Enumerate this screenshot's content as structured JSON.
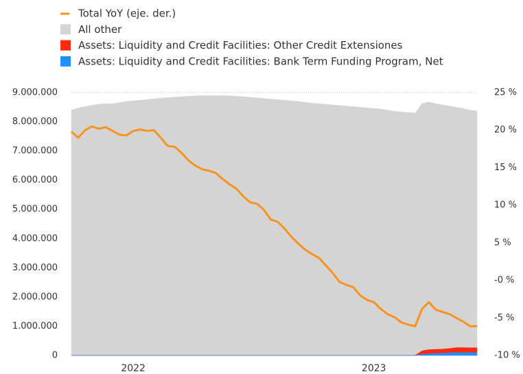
{
  "chart_data": {
    "type": "stacked-area-line",
    "categories": [
      null,
      null,
      null,
      null,
      null,
      null,
      null,
      null,
      null,
      "2022",
      null,
      null,
      null,
      null,
      null,
      null,
      null,
      null,
      null,
      null,
      null,
      null,
      null,
      null,
      null,
      null,
      null,
      null,
      null,
      null,
      null,
      null,
      null,
      null,
      null,
      null,
      null,
      null,
      null,
      null,
      null,
      null,
      null,
      null,
      "2023",
      null,
      null,
      null,
      null,
      null,
      null,
      null,
      null,
      null,
      null,
      null,
      null,
      null,
      null,
      null
    ],
    "series": [
      {
        "name": "Total YoY (eje. der.)",
        "color": "#f7931e",
        "axis": "y2",
        "kind": "line",
        "values": [
          19.8,
          19.0,
          20.0,
          20.5,
          20.2,
          20.4,
          19.9,
          19.4,
          19.3,
          19.9,
          20.1,
          19.9,
          20.0,
          19.0,
          17.9,
          17.8,
          17.0,
          16.0,
          15.3,
          14.8,
          14.6,
          14.3,
          13.5,
          12.8,
          12.2,
          11.2,
          10.4,
          10.2,
          9.4,
          8.1,
          7.8,
          6.9,
          5.8,
          4.9,
          4.1,
          3.5,
          3.0,
          2.0,
          1.0,
          -0.2,
          -0.6,
          -0.9,
          -2.0,
          -2.6,
          -2.9,
          -3.8,
          -4.5,
          -4.9,
          -5.6,
          -5.9,
          -6.1,
          -3.8,
          -2.9,
          -3.9,
          -4.2,
          -4.5,
          -5.0,
          -5.5,
          -6.1,
          -6.1
        ]
      },
      {
        "name": "All other",
        "color": "#d4d4d4",
        "kind": "area",
        "values": [
          8405000,
          8465000,
          8515000,
          8565000,
          8595000,
          8615000,
          8615000,
          8655000,
          8695000,
          8715000,
          8735000,
          8755000,
          8785000,
          8805000,
          8825000,
          8845000,
          8855000,
          8875000,
          8885000,
          8895000,
          8895000,
          8895000,
          8895000,
          8885000,
          8875000,
          8855000,
          8835000,
          8815000,
          8795000,
          8775000,
          8755000,
          8735000,
          8715000,
          8695000,
          8665000,
          8635000,
          8615000,
          8595000,
          8575000,
          8555000,
          8535000,
          8515000,
          8495000,
          8475000,
          8455000,
          8435000,
          8395000,
          8355000,
          8335000,
          8315000,
          8295000,
          8470000,
          8480000,
          8410000,
          8360000,
          8300000,
          8230000,
          8190000,
          8135000,
          8105000
        ]
      },
      {
        "name": "Assets: Liquidity and Credit Facilities: Other Credit Extensiones",
        "color": "#ff2a0f",
        "kind": "area",
        "values": [
          5000,
          5000,
          5000,
          5000,
          5000,
          5000,
          5000,
          5000,
          5000,
          5000,
          5000,
          5000,
          5000,
          5000,
          5000,
          5000,
          5000,
          5000,
          5000,
          5000,
          5000,
          5000,
          5000,
          5000,
          5000,
          5000,
          5000,
          5000,
          5000,
          5000,
          5000,
          5000,
          5000,
          5000,
          5000,
          5000,
          5000,
          5000,
          5000,
          5000,
          5000,
          5000,
          5000,
          5000,
          5000,
          5000,
          5000,
          5000,
          5000,
          5000,
          5000,
          120000,
          140000,
          140000,
          140000,
          150000,
          170000,
          170000,
          165000,
          165000
        ]
      },
      {
        "name": "Assets: Liquidity and Credit Facilities: Bank Term Funding Program, Net",
        "color": "#1e90ff",
        "kind": "area",
        "values": [
          0,
          0,
          0,
          0,
          0,
          0,
          0,
          0,
          0,
          0,
          0,
          0,
          0,
          0,
          0,
          0,
          0,
          0,
          0,
          0,
          0,
          0,
          0,
          0,
          0,
          0,
          0,
          0,
          0,
          0,
          0,
          0,
          0,
          0,
          0,
          0,
          0,
          0,
          0,
          0,
          0,
          0,
          0,
          0,
          0,
          0,
          0,
          0,
          0,
          0,
          0,
          40000,
          60000,
          70000,
          80000,
          90000,
          100000,
          100000,
          100000,
          100000
        ]
      }
    ],
    "ylim": [
      0,
      9000000
    ],
    "yticks": [
      0,
      {
        "value": 1000000,
        "label": "1.000.000"
      },
      {
        "value": 2000000,
        "label": "2.000.000"
      },
      {
        "value": 3000000,
        "label": "3.000.000"
      },
      {
        "value": 4000000,
        "label": "4.000.000"
      },
      {
        "value": 5000000,
        "label": "5.000.000"
      },
      {
        "value": 6000000,
        "label": "6.000.000"
      },
      {
        "value": 7000000,
        "label": "7.000.000"
      },
      {
        "value": 8000000,
        "label": "8.000.000"
      },
      {
        "value": 9000000,
        "label": "9.000.000"
      }
    ],
    "y2lim": [
      -10,
      25
    ],
    "y2ticks": [
      {
        "value": -10,
        "label": "-10 %"
      },
      {
        "value": -5,
        "label": "-5 %"
      },
      {
        "value": 0,
        "label": "-0 %"
      },
      {
        "value": 5,
        "label": "5 %"
      },
      {
        "value": 10,
        "label": "10 %"
      },
      {
        "value": 15,
        "label": "15 %"
      },
      {
        "value": 20,
        "label": "20 %"
      },
      {
        "value": 25,
        "label": "25 %"
      }
    ],
    "grid": true
  }
}
